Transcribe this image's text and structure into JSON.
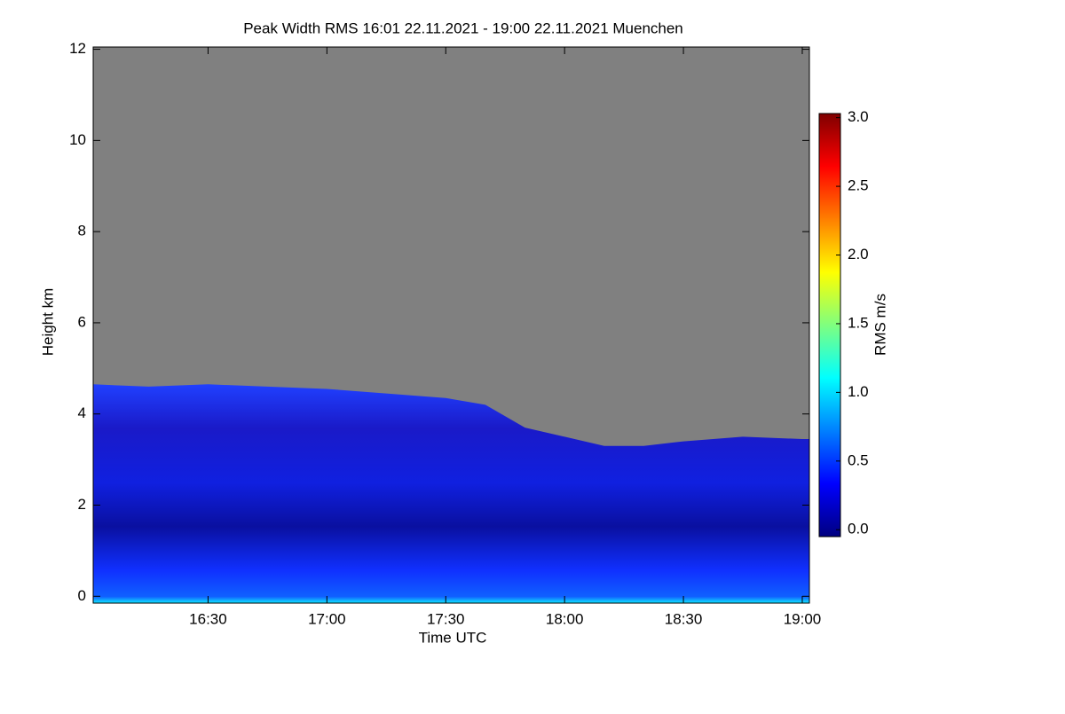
{
  "chart_data": {
    "type": "heatmap",
    "title": "Peak Width RMS   16:01 22.11.2021 - 19:00 22.11.2021 Muenchen",
    "x_label": "Time UTC",
    "y_label": "Height km",
    "colorbar_label": "RMS m/s",
    "x": [
      16.0167,
      16.25,
      16.5,
      16.75,
      17.0,
      17.25,
      17.5,
      17.6667,
      17.8333,
      18.0,
      18.1667,
      18.3333,
      18.5,
      18.75,
      19.0
    ],
    "values": [
      4.65,
      4.6,
      4.65,
      4.6,
      4.55,
      4.45,
      4.35,
      4.2,
      3.7,
      3.5,
      3.3,
      3.3,
      3.4,
      3.5,
      3.45
    ],
    "xlim": [
      16.0167,
      19.03
    ],
    "ylim": [
      -0.15,
      12.05
    ],
    "clim": [
      -0.05,
      3.03
    ],
    "xticks": [
      {
        "value": 16.5,
        "label": "16:30"
      },
      {
        "value": 17.0,
        "label": "17:00"
      },
      {
        "value": 17.5,
        "label": "17:30"
      },
      {
        "value": 18.0,
        "label": "18:00"
      },
      {
        "value": 18.5,
        "label": "18:30"
      },
      {
        "value": 19.0,
        "label": "19:00"
      }
    ],
    "yticks": [
      0,
      2,
      4,
      6,
      8,
      10,
      12
    ],
    "cticks": [
      {
        "value": 0,
        "label": "0.0"
      },
      {
        "value": 0.5,
        "label": "0.5"
      },
      {
        "value": 1,
        "label": "1.0"
      },
      {
        "value": 1.5,
        "label": "1.5"
      },
      {
        "value": 2,
        "label": "2.0"
      },
      {
        "value": 2.5,
        "label": "2.5"
      },
      {
        "value": 3,
        "label": "3.0"
      }
    ],
    "missing_color": "#808080",
    "colormap": [
      "#00007f",
      "#0000ff",
      "#007fff",
      "#00ffff",
      "#7fff7f",
      "#ffff00",
      "#ff7f00",
      "#ff0000",
      "#7f0000"
    ]
  }
}
